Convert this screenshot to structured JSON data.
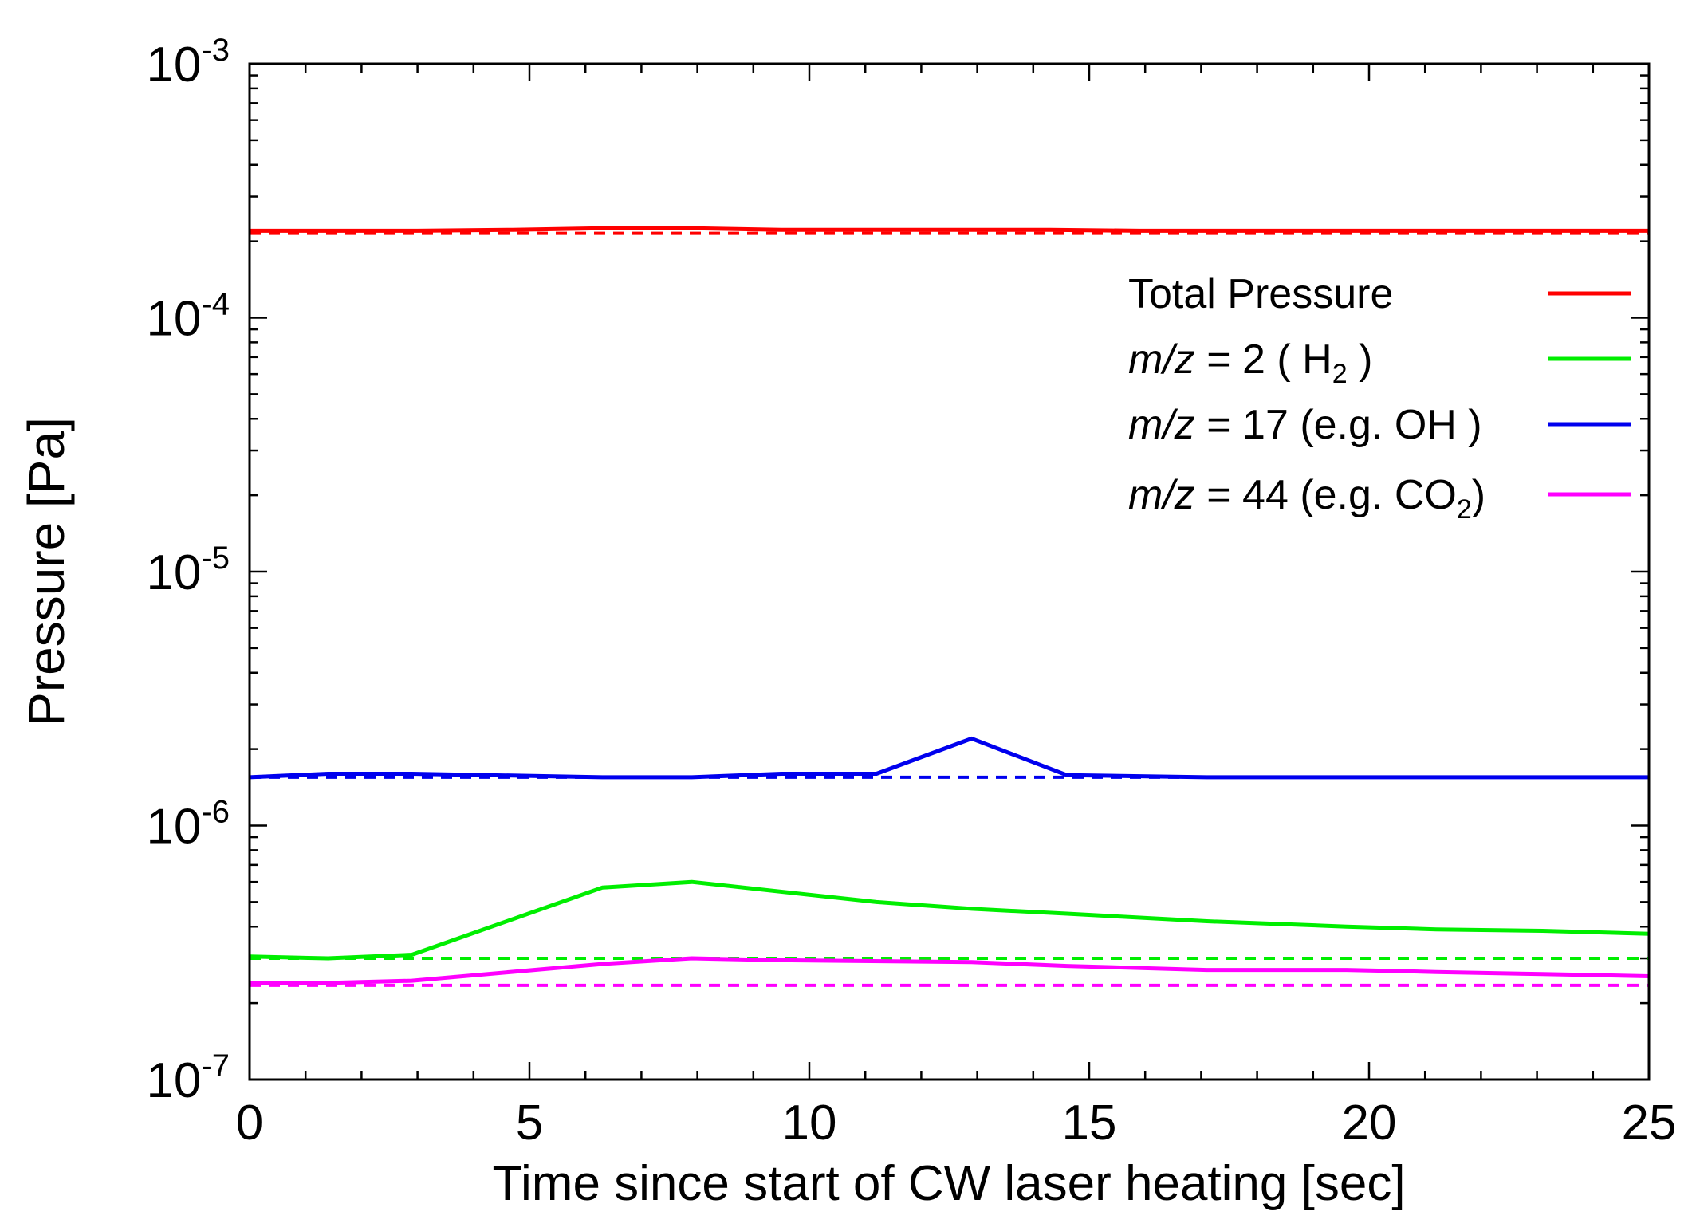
{
  "chart_data": {
    "type": "line",
    "xlabel": "Time since start of CW laser heating [sec]",
    "ylabel": "Pressure [Pa]",
    "xlim": [
      0,
      25
    ],
    "ylim": [
      1e-07,
      0.001
    ],
    "yscale": "log",
    "xticks": [
      0,
      5,
      10,
      15,
      20,
      25
    ],
    "yticks": [
      {
        "base": "10",
        "exp": "-7",
        "value": 1e-07
      },
      {
        "base": "10",
        "exp": "-6",
        "value": 1e-06
      },
      {
        "base": "10",
        "exp": "-5",
        "value": 1e-05
      },
      {
        "base": "10",
        "exp": "-4",
        "value": 0.0001
      },
      {
        "base": "10",
        "exp": "-3",
        "value": 0.001
      }
    ],
    "series": [
      {
        "name": "Total Pressure",
        "color": "#ff0000",
        "x": [
          0,
          1.5,
          3,
          4.7,
          6.3,
          7.9,
          9.5,
          11.1,
          12.7,
          14.3,
          15.9,
          17.5,
          19.1,
          20.7,
          22.3,
          23.9,
          25
        ],
        "y": [
          0.00022,
          0.00022,
          0.00022,
          0.000222,
          0.000225,
          0.000225,
          0.000222,
          0.000222,
          0.000222,
          0.000222,
          0.00022,
          0.00022,
          0.00022,
          0.00022,
          0.00022,
          0.00022,
          0.00022
        ],
        "baseline": 0.000215,
        "legend": {
          "plain": "Total Pressure"
        }
      },
      {
        "name": "m/z = 2 ( H2 )",
        "color": "#00ee00",
        "x": [
          0,
          1.4,
          2.9,
          6.3,
          7.9,
          11.2,
          12.9,
          14.6,
          17.1,
          19.6,
          21.2,
          23.1,
          25
        ],
        "y": [
          3.05e-07,
          3e-07,
          3.1e-07,
          5.7e-07,
          6e-07,
          5e-07,
          4.7e-07,
          4.5e-07,
          4.2e-07,
          4e-07,
          3.9e-07,
          3.85e-07,
          3.75e-07
        ],
        "baseline": 3e-07,
        "legend": {
          "italic": "m/z",
          "plain": " = 2   ( H",
          "sub": "2",
          "tail": " )"
        }
      },
      {
        "name": "m/z = 17 (e.g. OH )",
        "color": "#0000ee",
        "x": [
          0,
          1.4,
          2.9,
          6.3,
          7.9,
          9.5,
          11.2,
          12.9,
          14.6,
          17.1,
          19.6,
          21.2,
          23.1,
          25
        ],
        "y": [
          1.55e-06,
          1.6e-06,
          1.6e-06,
          1.55e-06,
          1.55e-06,
          1.6e-06,
          1.6e-06,
          2.2e-06,
          1.58e-06,
          1.55e-06,
          1.55e-06,
          1.55e-06,
          1.55e-06,
          1.55e-06
        ],
        "baseline": 1.55e-06,
        "legend": {
          "italic": "m/z",
          "plain": " = 17 (e.g. OH )"
        }
      },
      {
        "name": "m/z = 44 (e.g. CO2)",
        "color": "#ff00ff",
        "x": [
          0,
          1.4,
          2.9,
          6.3,
          7.9,
          9.5,
          12.9,
          14.6,
          17.1,
          19.6,
          21.2,
          23.1,
          25
        ],
        "y": [
          2.4e-07,
          2.4e-07,
          2.45e-07,
          2.85e-07,
          3e-07,
          2.95e-07,
          2.9e-07,
          2.8e-07,
          2.7e-07,
          2.7e-07,
          2.65e-07,
          2.6e-07,
          2.55e-07
        ],
        "baseline": 2.35e-07,
        "legend": {
          "italic": "m/z",
          "plain": " = 44 (e.g. CO",
          "sub": "2",
          "tail": ")"
        }
      }
    ]
  }
}
